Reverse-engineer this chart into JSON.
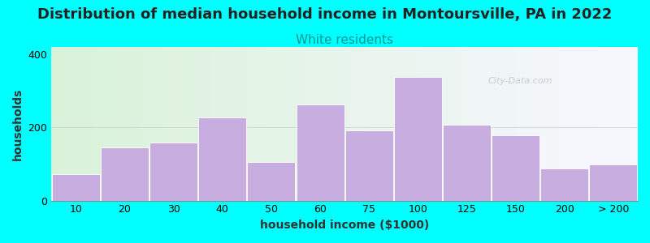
{
  "title": "Distribution of median household income in Montoursville, PA in 2022",
  "subtitle": "White residents",
  "xlabel": "household income ($1000)",
  "ylabel": "households",
  "background_color": "#00FFFF",
  "bar_color": "#c8aee0",
  "bar_edge_color": "#ffffff",
  "categories": [
    "10",
    "20",
    "30",
    "40",
    "50",
    "60",
    "75",
    "100",
    "125",
    "150",
    "200",
    "> 200"
  ],
  "values": [
    72,
    145,
    158,
    228,
    105,
    263,
    192,
    338,
    207,
    178,
    88,
    98
  ],
  "ylim": [
    0,
    420
  ],
  "yticks": [
    0,
    200,
    400
  ],
  "watermark": "City-Data.com",
  "title_fontsize": 13,
  "subtitle_fontsize": 11,
  "subtitle_color": "#009999",
  "axis_label_fontsize": 10,
  "tick_fontsize": 9,
  "plot_grad_left": "#d8f0d0",
  "plot_grad_right": "#f5f5ff"
}
